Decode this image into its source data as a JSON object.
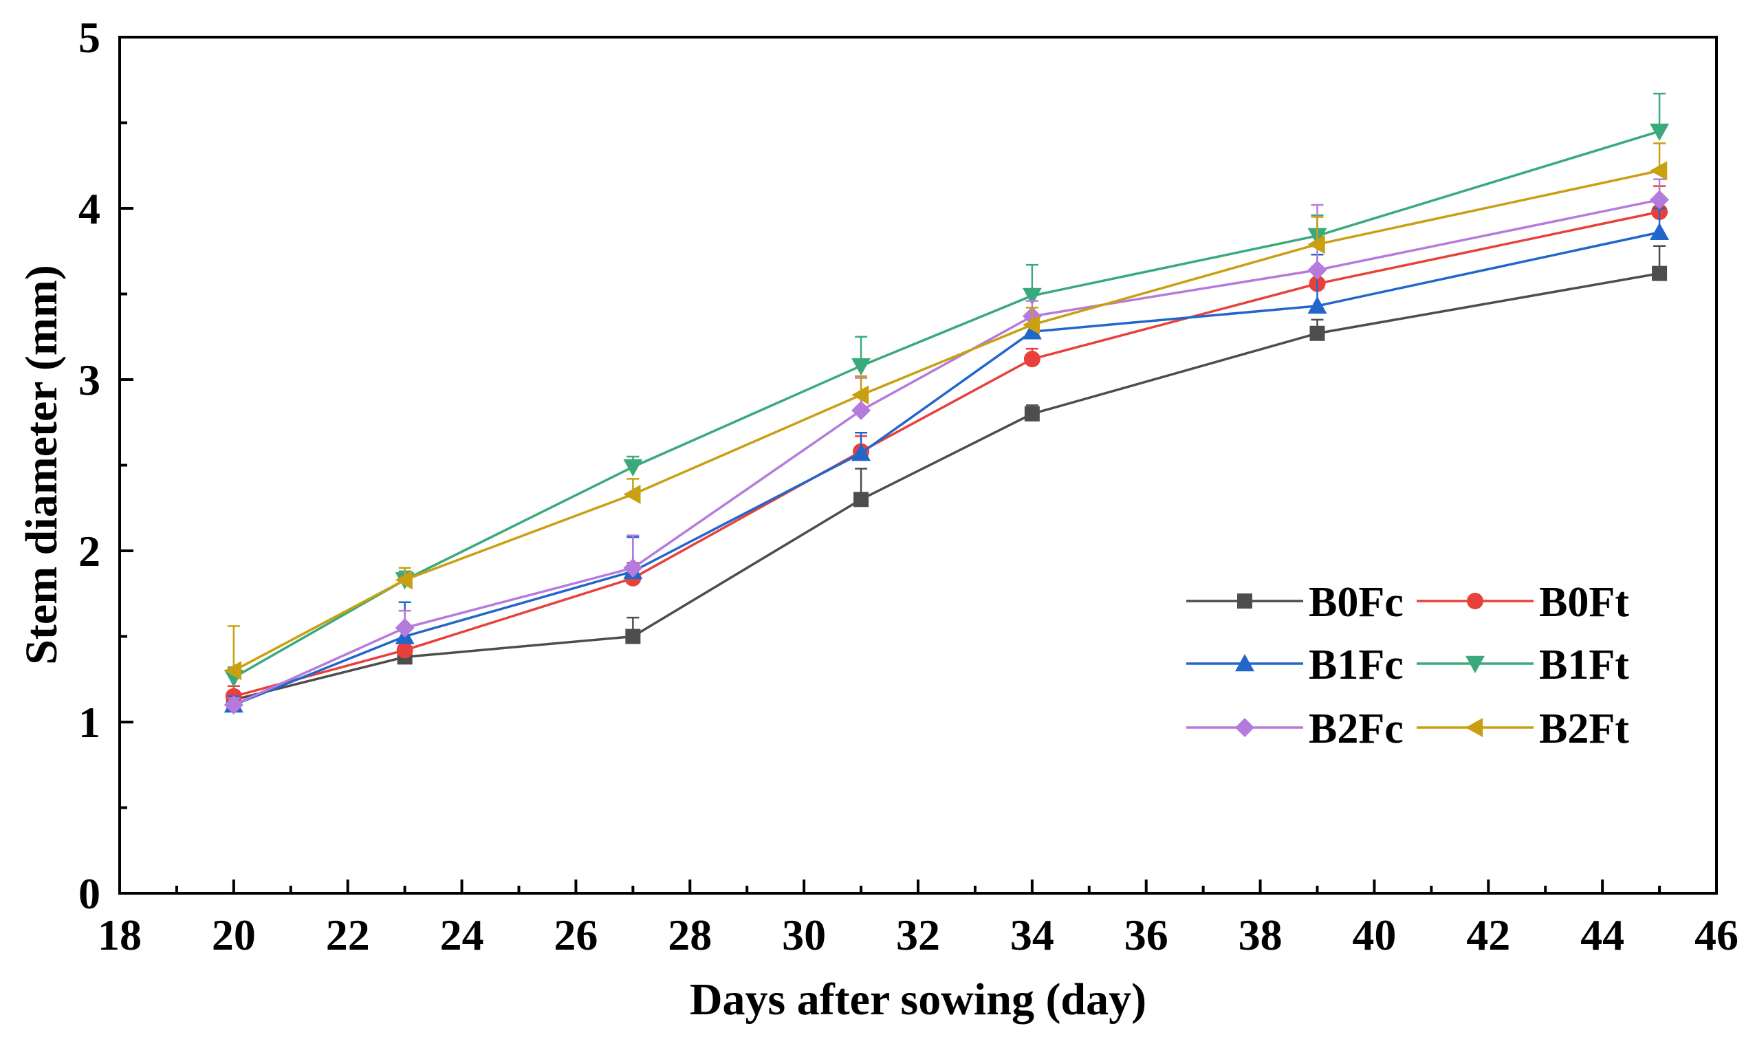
{
  "chart_data": {
    "type": "line",
    "title": "",
    "xlabel": "Days after sowing (day)",
    "ylabel": "Stem diameter (mm)",
    "xlim": [
      18,
      46
    ],
    "ylim": [
      0,
      5
    ],
    "xticks": [
      18,
      20,
      22,
      24,
      26,
      28,
      30,
      32,
      34,
      36,
      38,
      40,
      42,
      44,
      46
    ],
    "yticks": [
      0,
      1,
      2,
      3,
      4,
      5
    ],
    "x": [
      20,
      23,
      27,
      31,
      34,
      39,
      45
    ],
    "grid": false,
    "legend_position": "lower-right",
    "series": [
      {
        "name": "B0Fc",
        "color": "#4d4d4d",
        "marker": "square",
        "values": [
          1.13,
          1.38,
          1.5,
          2.3,
          2.8,
          3.27,
          3.62
        ],
        "errors": [
          0.05,
          0.04,
          0.11,
          0.18,
          0.05,
          0.08,
          0.16
        ]
      },
      {
        "name": "B0Ft",
        "color": "#e8413c",
        "marker": "circle",
        "values": [
          1.15,
          1.42,
          1.84,
          2.58,
          3.12,
          3.56,
          3.98
        ],
        "errors": [
          0.06,
          0.05,
          0.09,
          0.09,
          0.06,
          0.1,
          0.15
        ]
      },
      {
        "name": "B1Fc",
        "color": "#2266cc",
        "marker": "triangle-up",
        "values": [
          1.1,
          1.5,
          1.88,
          2.57,
          3.28,
          3.43,
          3.86
        ],
        "errors": [
          0.05,
          0.2,
          0.2,
          0.12,
          0.08,
          0.3,
          0.14
        ]
      },
      {
        "name": "B1Ft",
        "color": "#3aaa7c",
        "marker": "triangle-down",
        "values": [
          1.26,
          1.83,
          2.49,
          3.08,
          3.49,
          3.84,
          4.45
        ],
        "errors": [
          0.06,
          0.05,
          0.06,
          0.17,
          0.18,
          0.12,
          0.22
        ]
      },
      {
        "name": "B2Fc",
        "color": "#b57bdc",
        "marker": "diamond",
        "values": [
          1.1,
          1.55,
          1.9,
          2.82,
          3.37,
          3.64,
          4.05
        ],
        "errors": [
          0.04,
          0.1,
          0.19,
          0.19,
          0.09,
          0.38,
          0.12
        ]
      },
      {
        "name": "B2Ft",
        "color": "#c8a012",
        "marker": "triangle-left",
        "values": [
          1.3,
          1.83,
          2.33,
          2.91,
          3.32,
          3.79,
          4.22
        ],
        "errors": [
          0.26,
          0.07,
          0.09,
          0.11,
          0.1,
          0.16,
          0.16
        ]
      }
    ]
  }
}
